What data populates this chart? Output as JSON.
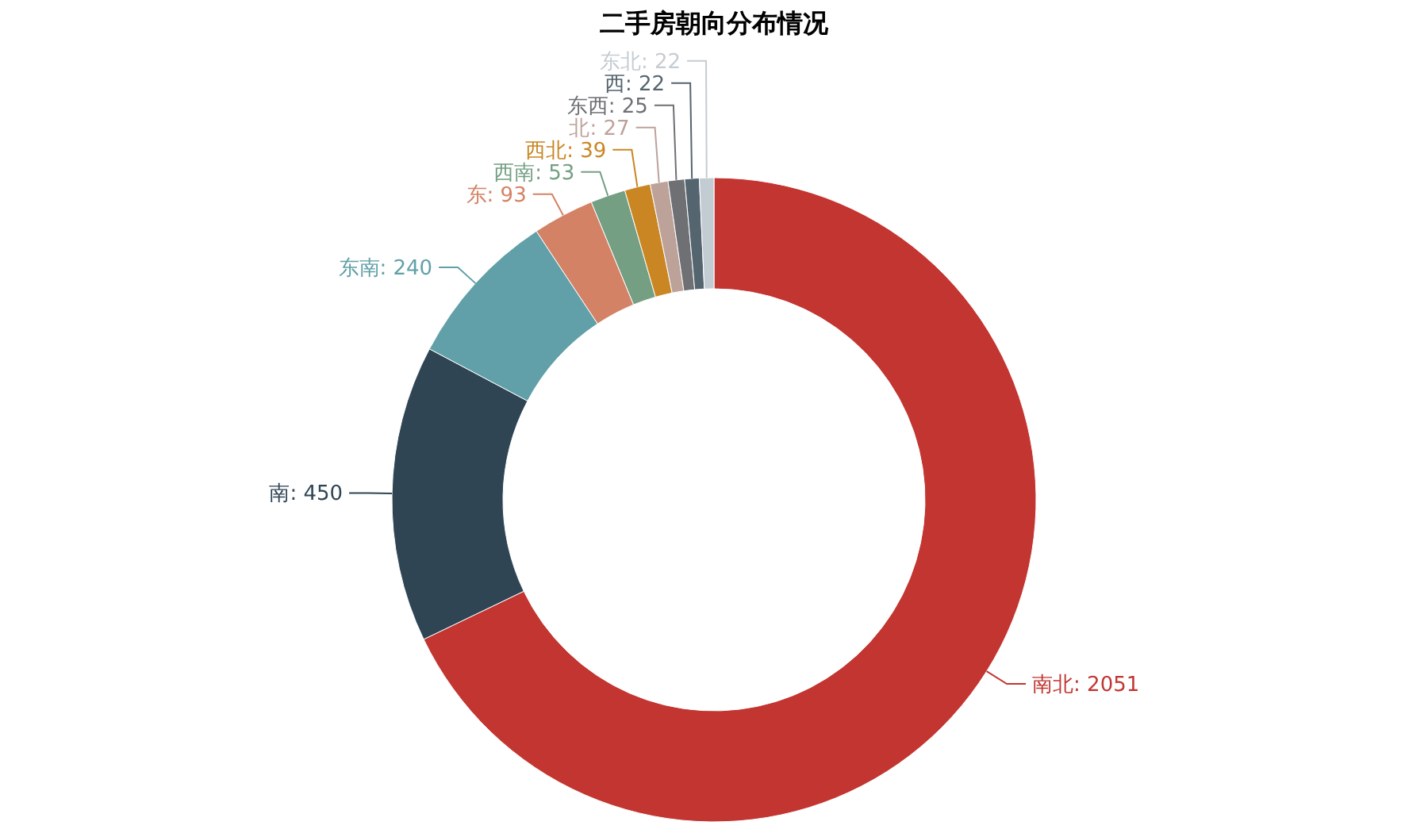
{
  "chart_data": {
    "type": "donut",
    "title": "二手房朝向分布情况",
    "categories": [
      "南北",
      "南",
      "东南",
      "东",
      "西南",
      "西北",
      "北",
      "东西",
      "西",
      "东北"
    ],
    "values": [
      2051,
      450,
      240,
      93,
      53,
      39,
      27,
      25,
      22,
      22
    ],
    "colors": [
      "#c23531",
      "#2f4554",
      "#61a0a8",
      "#d48265",
      "#749f83",
      "#ca8622",
      "#bda29a",
      "#6e7074",
      "#546570",
      "#c4ccd3"
    ],
    "value_labels": [
      ": 2051",
      ": 450",
      ": 240",
      ": 93",
      ": 53",
      ": 39",
      ": 27",
      ": 25",
      ": 22",
      ": 22"
    ],
    "legend": false
  }
}
